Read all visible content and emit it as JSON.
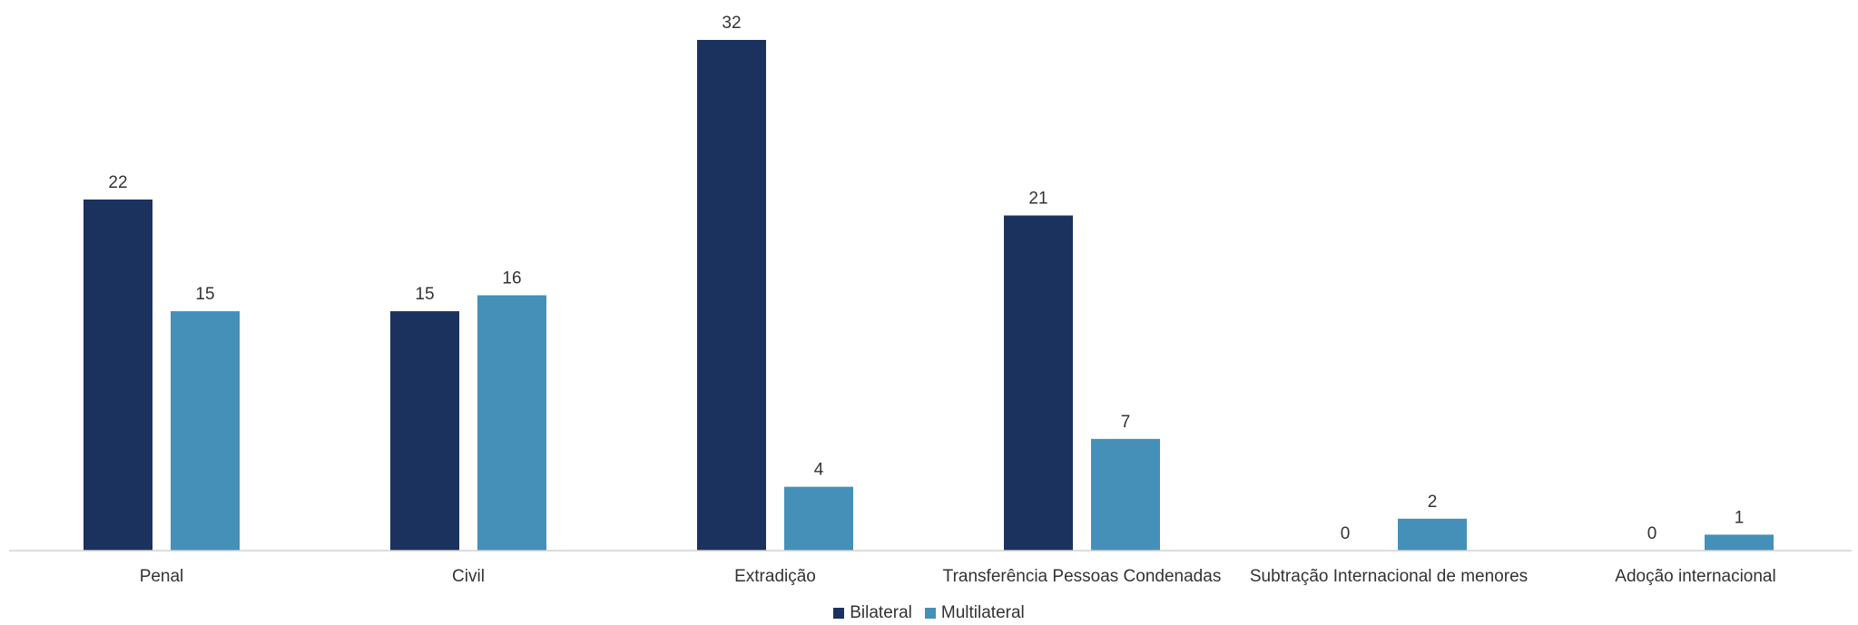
{
  "chart_data": {
    "type": "bar",
    "categories": [
      "Penal",
      "Civil",
      "Extradição",
      "Transferência Pessoas Condenadas",
      "Subtração Internacional de menores",
      "Adoção internacional"
    ],
    "series": [
      {
        "name": "Bilateral",
        "values": [
          22,
          15,
          32,
          21,
          0,
          0
        ],
        "color": "#1c325e"
      },
      {
        "name": "Multilateral",
        "values": [
          15,
          16,
          4,
          7,
          2,
          1
        ],
        "color": "#4590b9"
      }
    ],
    "title": "",
    "xlabel": "",
    "ylabel": "",
    "ylim": [
      0,
      32
    ],
    "grid": false,
    "data_labels": true,
    "legend_position": "bottom"
  }
}
